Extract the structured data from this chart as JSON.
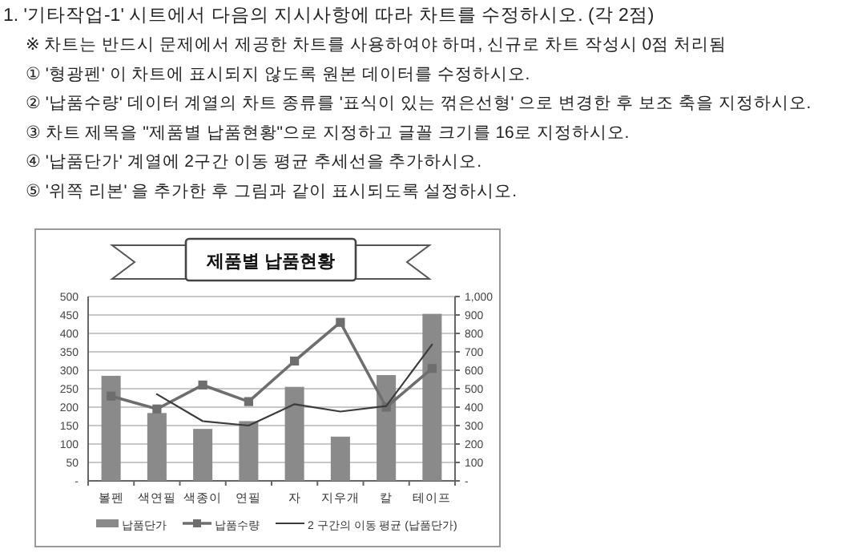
{
  "chart_data": {
    "type": "bar",
    "title": "제품별 납품현황",
    "categories": [
      "볼펜",
      "색연필",
      "색종이",
      "연필",
      "자",
      "지우개",
      "칼",
      "테이프"
    ],
    "series": [
      {
        "name": "납품단가",
        "color": "#8a8a8a",
        "values": [
          285,
          184,
          141,
          162,
          255,
          120,
          287,
          453
        ]
      },
      {
        "name": "납품수량",
        "type": "line",
        "axis": "y2",
        "marker": "square",
        "color": "#6e6e6e",
        "values": [
          460,
          390,
          520,
          430,
          650,
          860,
          400,
          610
        ]
      },
      {
        "name": "2 구간의 이동 평균 (납품단가)",
        "type": "line",
        "marker": "none",
        "color": "#3c3c3c",
        "values": [
          null,
          235,
          162,
          150,
          208,
          188,
          203,
          370
        ]
      }
    ],
    "ylim": [
      0,
      500
    ],
    "yticks": [
      {
        "value": 0,
        "label": "-"
      },
      50,
      100,
      150,
      200,
      250,
      300,
      350,
      400,
      450,
      500
    ],
    "y2lim": [
      0,
      1000
    ],
    "y2ticks": [
      {
        "value": 0,
        "label": "-"
      },
      100,
      200,
      300,
      400,
      500,
      600,
      700,
      800,
      900,
      {
        "value": 1000,
        "label": "1,000"
      }
    ],
    "grid": "y",
    "legend": "bottom",
    "annotations": [
      "1. '기타작업-1' 시트에서 다음의 지시사항에 따라 차트를 수정하시오. (각 2점)",
      "※ 차트는 반드시 문제에서 제공한 차트를 사용하여야 하며, 신규로 차트 작성시 0점 처리됨",
      "① '형광펜' 이 차트에 표시되지 않도록 원본 데이터를 수정하시오.",
      "② '납품수량' 데이터 계열의 차트 종류를 '표식이 있는 꺾은선형' 으로 변경한 후 보조 축을 지정하시오.",
      "③ 차트 제목을 \"제품별 납품현황\"으로 지정하고 글꼴 크기를 16로 지정하시오.",
      "④ '납품단가' 계열에 2구간 이동 평균 추세선을 추가하시오.",
      "⑤ '위쪽 리본' 을 추가한 후 그림과 같이 표시되도록 설정하시오."
    ]
  }
}
